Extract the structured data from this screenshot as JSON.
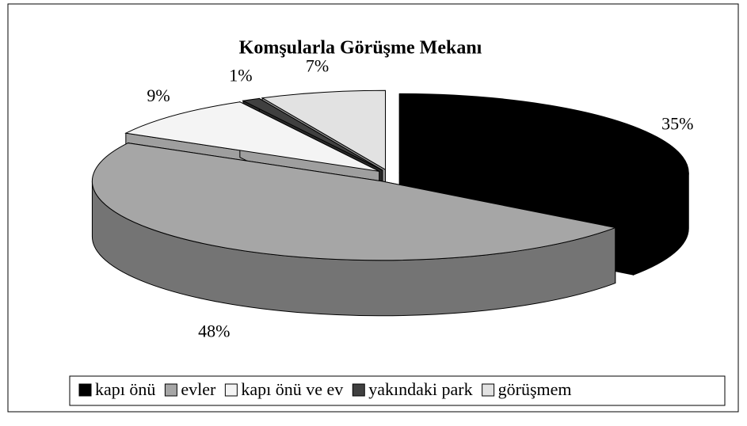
{
  "chart_data": {
    "type": "pie",
    "title": "Komşularla Görüşme Mekanı",
    "categories": [
      "kapı önü",
      "evler",
      "kapı önü ve ev",
      "yakındaki park",
      "görüşmem"
    ],
    "values": [
      35,
      48,
      9,
      1,
      7
    ],
    "value_labels": [
      "35%",
      "48%",
      "9%",
      "1%",
      "7%"
    ],
    "colors": [
      "#000000",
      "#a6a6a6",
      "#f4f4f4",
      "#404040",
      "#e2e2e2"
    ]
  }
}
